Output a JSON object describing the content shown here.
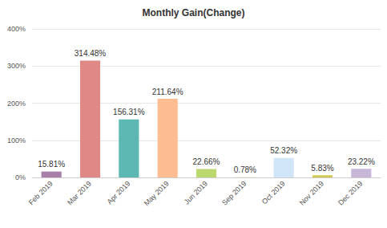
{
  "chart_data": {
    "type": "bar",
    "title": "Monthly Gain(Change)",
    "categories": [
      "Feb 2019",
      "Mar 2019",
      "Apr 2019",
      "May 2019",
      "Jun 2019",
      "Sep 2019",
      "Oct 2019",
      "Nov 2019",
      "Dec 2019"
    ],
    "values": [
      15.81,
      314.48,
      156.31,
      211.64,
      22.66,
      0.78,
      52.32,
      5.83,
      23.22
    ],
    "value_labels": [
      "15.81%",
      "314.48%",
      "156.31%",
      "211.64%",
      "22.66%",
      "0.78%",
      "52.32%",
      "5.83%",
      "23.22%"
    ],
    "data_labels": true,
    "colors": [
      "#a87fa9",
      "#e08886",
      "#5db7b2",
      "#fdbd91",
      "#bbd96e",
      "#f3e29c",
      "#d0e6f8",
      "#d3c84d",
      "#c8b6d9"
    ],
    "ylim": [
      0,
      400
    ],
    "yticks": [
      {
        "value": 0,
        "label": "0%"
      },
      {
        "value": 100,
        "label": "100%"
      },
      {
        "value": 200,
        "label": "200%"
      },
      {
        "value": 300,
        "label": "300%"
      },
      {
        "value": 400,
        "label": "400%"
      }
    ],
    "grid": true
  }
}
